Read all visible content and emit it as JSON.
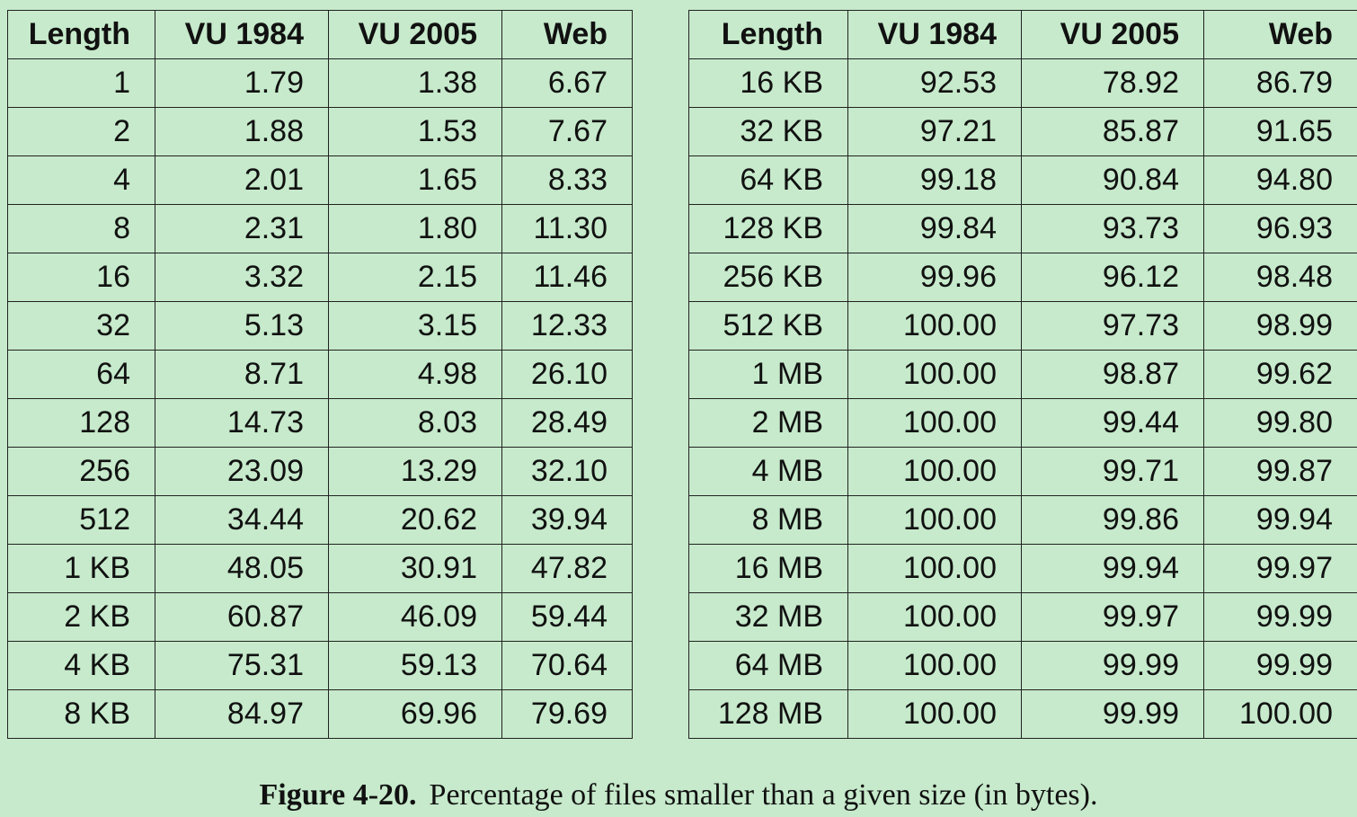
{
  "left_table": {
    "headers": [
      "Length",
      "VU 1984",
      "VU 2005",
      "Web"
    ],
    "rows": [
      [
        "1",
        "1.79",
        "1.38",
        "6.67"
      ],
      [
        "2",
        "1.88",
        "1.53",
        "7.67"
      ],
      [
        "4",
        "2.01",
        "1.65",
        "8.33"
      ],
      [
        "8",
        "2.31",
        "1.80",
        "11.30"
      ],
      [
        "16",
        "3.32",
        "2.15",
        "11.46"
      ],
      [
        "32",
        "5.13",
        "3.15",
        "12.33"
      ],
      [
        "64",
        "8.71",
        "4.98",
        "26.10"
      ],
      [
        "128",
        "14.73",
        "8.03",
        "28.49"
      ],
      [
        "256",
        "23.09",
        "13.29",
        "32.10"
      ],
      [
        "512",
        "34.44",
        "20.62",
        "39.94"
      ],
      [
        "1 KB",
        "48.05",
        "30.91",
        "47.82"
      ],
      [
        "2 KB",
        "60.87",
        "46.09",
        "59.44"
      ],
      [
        "4 KB",
        "75.31",
        "59.13",
        "70.64"
      ],
      [
        "8 KB",
        "84.97",
        "69.96",
        "79.69"
      ]
    ]
  },
  "right_table": {
    "headers": [
      "Length",
      "VU 1984",
      "VU 2005",
      "Web"
    ],
    "rows": [
      [
        "16 KB",
        "92.53",
        "78.92",
        "86.79"
      ],
      [
        "32 KB",
        "97.21",
        "85.87",
        "91.65"
      ],
      [
        "64 KB",
        "99.18",
        "90.84",
        "94.80"
      ],
      [
        "128 KB",
        "99.84",
        "93.73",
        "96.93"
      ],
      [
        "256 KB",
        "99.96",
        "96.12",
        "98.48"
      ],
      [
        "512 KB",
        "100.00",
        "97.73",
        "98.99"
      ],
      [
        "1 MB",
        "100.00",
        "98.87",
        "99.62"
      ],
      [
        "2 MB",
        "100.00",
        "99.44",
        "99.80"
      ],
      [
        "4 MB",
        "100.00",
        "99.71",
        "99.87"
      ],
      [
        "8 MB",
        "100.00",
        "99.86",
        "99.94"
      ],
      [
        "16 MB",
        "100.00",
        "99.94",
        "99.97"
      ],
      [
        "32 MB",
        "100.00",
        "99.97",
        "99.99"
      ],
      [
        "64 MB",
        "100.00",
        "99.99",
        "99.99"
      ],
      [
        "128 MB",
        "100.00",
        "99.99",
        "100.00"
      ]
    ]
  },
  "caption": {
    "label": "Figure 4-20.",
    "text": "Percentage of files smaller than a given size (in bytes)."
  },
  "colors": {
    "background": "#c6eacb",
    "border": "#222222",
    "text": "#111111"
  }
}
